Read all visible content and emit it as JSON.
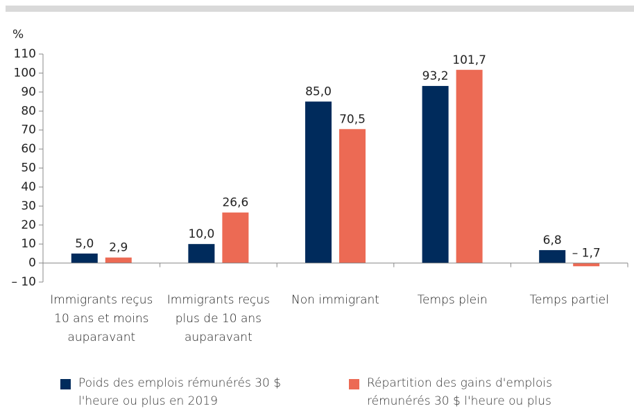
{
  "chart_data": {
    "type": "bar",
    "y_unit_label": "%",
    "categories": [
      "Immigrants reçus 10 ans et moins auparavant",
      "Immigrants reçus plus de 10 ans auparavant",
      "Non immigrant",
      "Temps plein",
      "Temps partiel"
    ],
    "series": [
      {
        "name": "Poids des emplois rémunérés 30 $ l'heure ou plus en 2019",
        "color": "#002b5c",
        "values": [
          5.0,
          10.0,
          85.0,
          93.2,
          6.8
        ],
        "value_labels": [
          "5,0",
          "10,0",
          "85,0",
          "93,2",
          "6,8"
        ]
      },
      {
        "name": "Répartition des gains d'emplois rémunérés 30 $ l'heure ou plus",
        "color": "#ec6a54",
        "values": [
          2.9,
          26.6,
          70.5,
          101.7,
          -1.7
        ],
        "value_labels": [
          "2,9",
          "26,6",
          "70,5",
          "101,7",
          "– 1,7"
        ]
      }
    ],
    "ylim": [
      -10,
      110
    ],
    "yticks": [
      {
        "value": -10,
        "label": "– 10"
      },
      0,
      10,
      20,
      30,
      40,
      50,
      60,
      70,
      80,
      90,
      100,
      110
    ],
    "grid": false
  }
}
